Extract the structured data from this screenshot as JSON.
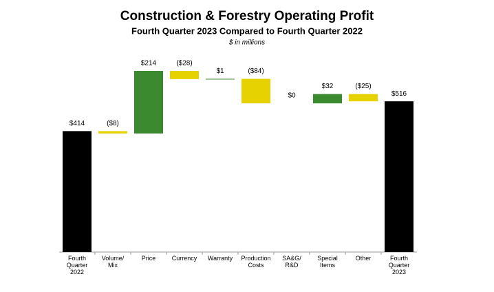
{
  "chart_data": {
    "type": "waterfall",
    "title": "Construction & Forestry Operating Profit",
    "subtitle": "Fourth Quarter 2023 Compared to Fourth Quarter 2022",
    "note": "$ in millions",
    "categories": [
      "Fourth Quarter 2022",
      "Volume/ Mix",
      "Price",
      "Currency",
      "Warranty",
      "Production Costs",
      "SA&G/ R&D",
      "Special Items",
      "Other",
      "Fourth Quarter 2023"
    ],
    "values": [
      414,
      -8,
      214,
      -28,
      1,
      -84,
      0,
      32,
      -25,
      516
    ],
    "value_labels": [
      "$414",
      "($8)",
      "$214",
      "($28)",
      "$1",
      "($84)",
      "$0",
      "$32",
      "($25)",
      "$516"
    ],
    "colors": {
      "total": "#000000",
      "increase": "#3b8a2f",
      "decrease": "#e6d200"
    }
  }
}
